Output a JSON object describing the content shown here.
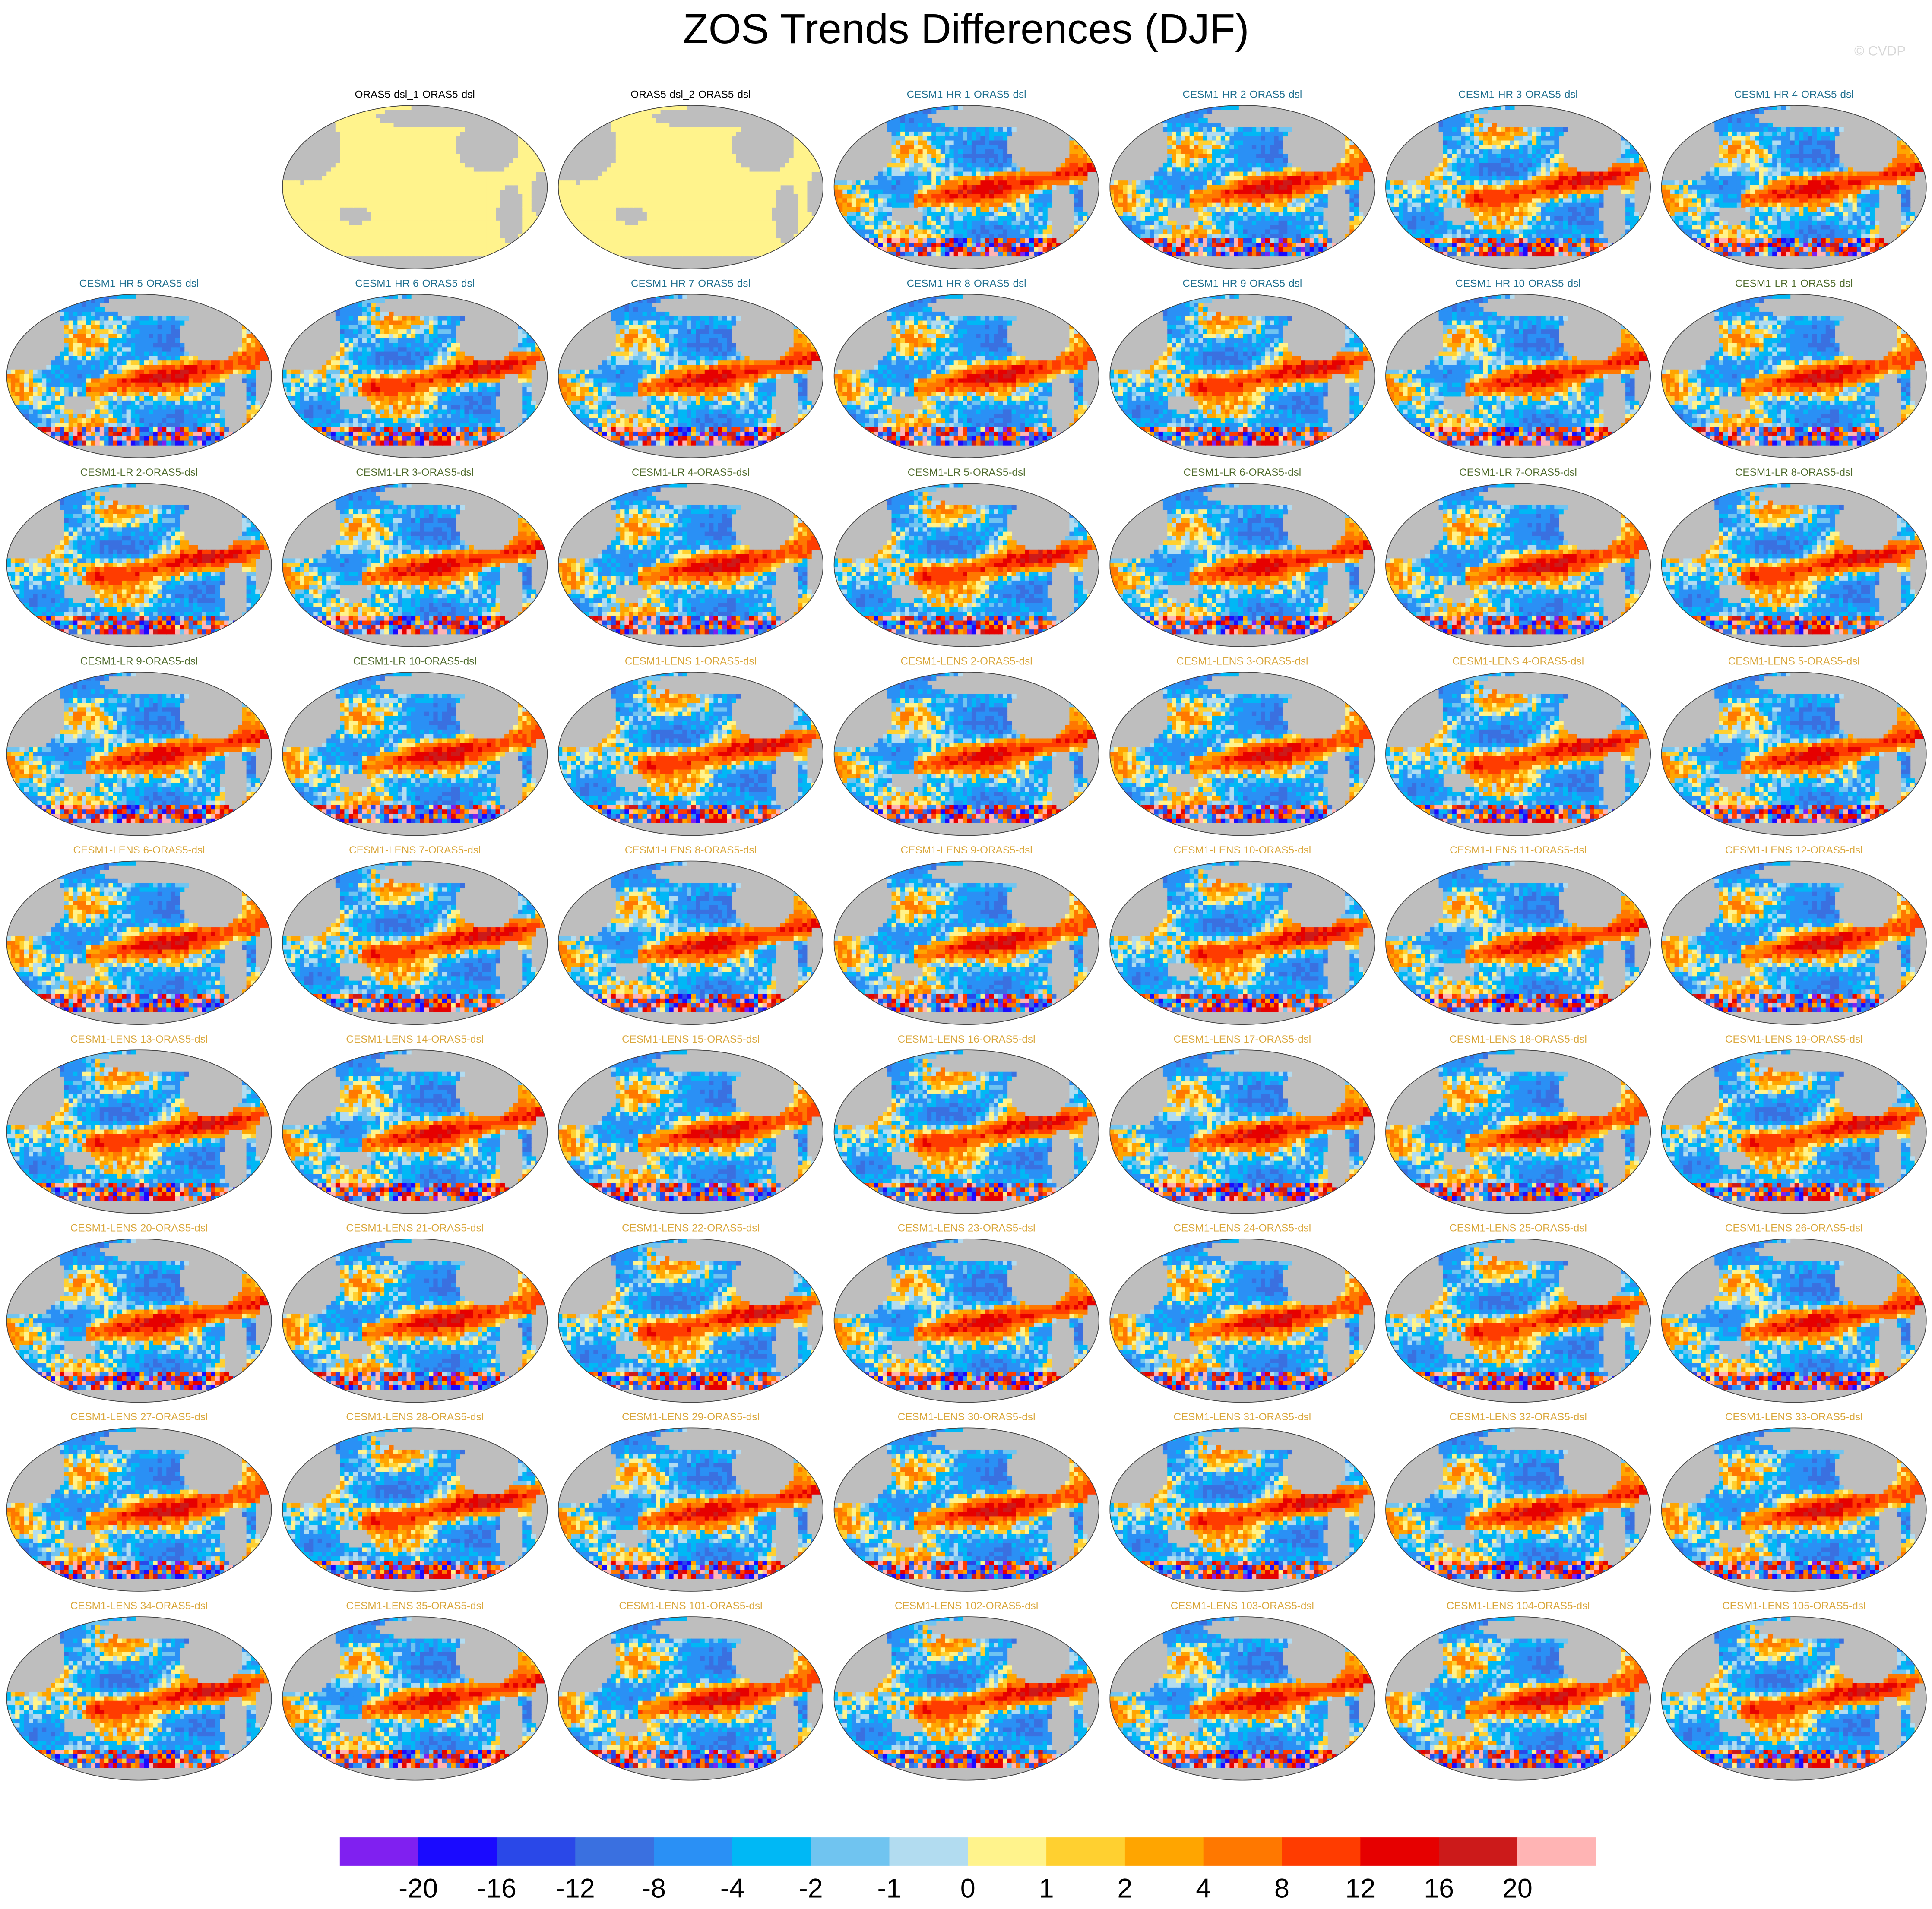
{
  "title": "ZOS Trends Differences (DJF)",
  "watermark": "© CVDP",
  "panel_groups": [
    {
      "color": "#000000",
      "style": "flat",
      "titles": [
        "ORAS5-dsl_1-ORAS5-dsl",
        "ORAS5-dsl_2-ORAS5-dsl"
      ]
    },
    {
      "color": "#1f6f8f",
      "style": "field",
      "titles": [
        "CESM1-HR 1-ORAS5-dsl",
        "CESM1-HR 2-ORAS5-dsl",
        "CESM1-HR 3-ORAS5-dsl",
        "CESM1-HR 4-ORAS5-dsl",
        "CESM1-HR 5-ORAS5-dsl",
        "CESM1-HR 6-ORAS5-dsl",
        "CESM1-HR 7-ORAS5-dsl",
        "CESM1-HR 8-ORAS5-dsl",
        "CESM1-HR 9-ORAS5-dsl",
        "CESM1-HR 10-ORAS5-dsl"
      ]
    },
    {
      "color": "#4f6b2c",
      "style": "field",
      "titles": [
        "CESM1-LR 1-ORAS5-dsl",
        "CESM1-LR 2-ORAS5-dsl",
        "CESM1-LR 3-ORAS5-dsl",
        "CESM1-LR 4-ORAS5-dsl",
        "CESM1-LR 5-ORAS5-dsl",
        "CESM1-LR 6-ORAS5-dsl",
        "CESM1-LR 7-ORAS5-dsl",
        "CESM1-LR 8-ORAS5-dsl",
        "CESM1-LR 9-ORAS5-dsl",
        "CESM1-LR 10-ORAS5-dsl"
      ]
    },
    {
      "color": "#d9a63a",
      "style": "field",
      "titles": [
        "CESM1-LENS 1-ORAS5-dsl",
        "CESM1-LENS 2-ORAS5-dsl",
        "CESM1-LENS 3-ORAS5-dsl",
        "CESM1-LENS 4-ORAS5-dsl",
        "CESM1-LENS 5-ORAS5-dsl",
        "CESM1-LENS 6-ORAS5-dsl",
        "CESM1-LENS 7-ORAS5-dsl",
        "CESM1-LENS 8-ORAS5-dsl",
        "CESM1-LENS 9-ORAS5-dsl",
        "CESM1-LENS 10-ORAS5-dsl",
        "CESM1-LENS 11-ORAS5-dsl",
        "CESM1-LENS 12-ORAS5-dsl",
        "CESM1-LENS 13-ORAS5-dsl",
        "CESM1-LENS 14-ORAS5-dsl",
        "CESM1-LENS 15-ORAS5-dsl",
        "CESM1-LENS 16-ORAS5-dsl",
        "CESM1-LENS 17-ORAS5-dsl",
        "CESM1-LENS 18-ORAS5-dsl",
        "CESM1-LENS 19-ORAS5-dsl",
        "CESM1-LENS 20-ORAS5-dsl",
        "CESM1-LENS 21-ORAS5-dsl",
        "CESM1-LENS 22-ORAS5-dsl",
        "CESM1-LENS 23-ORAS5-dsl",
        "CESM1-LENS 24-ORAS5-dsl",
        "CESM1-LENS 25-ORAS5-dsl",
        "CESM1-LENS 26-ORAS5-dsl",
        "CESM1-LENS 27-ORAS5-dsl",
        "CESM1-LENS 28-ORAS5-dsl",
        "CESM1-LENS 29-ORAS5-dsl",
        "CESM1-LENS 30-ORAS5-dsl",
        "CESM1-LENS 31-ORAS5-dsl",
        "CESM1-LENS 32-ORAS5-dsl",
        "CESM1-LENS 33-ORAS5-dsl",
        "CESM1-LENS 34-ORAS5-dsl",
        "CESM1-LENS 35-ORAS5-dsl",
        "CESM1-LENS 101-ORAS5-dsl",
        "CESM1-LENS 102-ORAS5-dsl",
        "CESM1-LENS 103-ORAS5-dsl",
        "CESM1-LENS 104-ORAS5-dsl",
        "CESM1-LENS 105-ORAS5-dsl"
      ]
    }
  ],
  "colorbar": {
    "colors": [
      "#8020f0",
      "#1a0aff",
      "#2a48e8",
      "#3a70e0",
      "#2a90f5",
      "#00b8f5",
      "#70c4f0",
      "#b2dcf0",
      "#fff38c",
      "#ffd030",
      "#ffa500",
      "#ff7800",
      "#ff3c00",
      "#e60000",
      "#cc1a1a",
      "#ffb4b4"
    ],
    "levels": [
      -20,
      -16,
      -12,
      -8,
      -4,
      -2,
      -1,
      0,
      1,
      2,
      4,
      8,
      12,
      16,
      20
    ]
  }
}
